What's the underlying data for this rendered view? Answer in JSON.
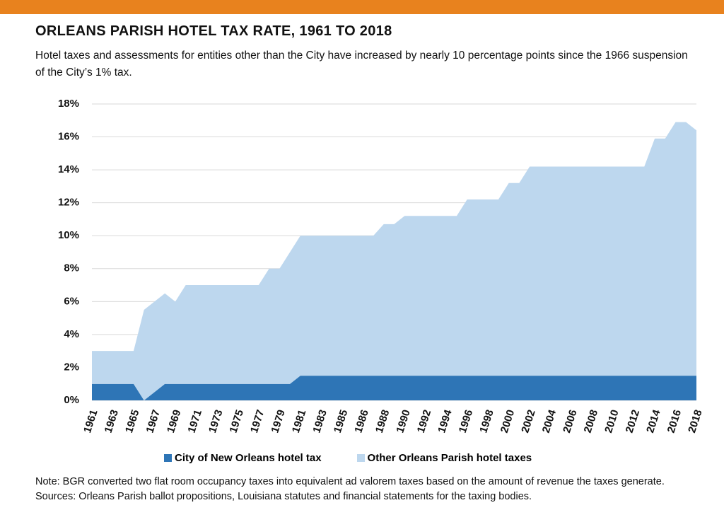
{
  "chart_data": {
    "type": "stacked_area",
    "title": "ORLEANS PARISH HOTEL TAX RATE, 1961 TO 2018",
    "subtitle": "Hotel taxes and assessments for entities other than the City have increased by nearly 10 percentage points since the 1966 suspension of the City’s 1% tax.",
    "categories": [
      "1961",
      null,
      "1963",
      null,
      "1965",
      null,
      "1967",
      null,
      "1969",
      null,
      "1971",
      null,
      "1973",
      null,
      "1975",
      null,
      "1977",
      null,
      "1979",
      null,
      "1981",
      null,
      "1983",
      null,
      "1985",
      null,
      "1986",
      null,
      "1988",
      null,
      "1990",
      null,
      "1992",
      null,
      "1994",
      null,
      "1996",
      null,
      "1998",
      null,
      "2000",
      null,
      "2002",
      null,
      "2004",
      null,
      "2006",
      null,
      "2008",
      null,
      "2010",
      null,
      "2012",
      null,
      "2014",
      null,
      "2016",
      null,
      "2018"
    ],
    "series": [
      {
        "name": "City of New Orleans hotel tax",
        "color": "#2e75b6",
        "values": [
          1,
          1,
          1,
          1,
          1,
          0,
          0.5,
          1,
          1,
          1,
          1,
          1,
          1,
          1,
          1,
          1,
          1,
          1,
          1,
          1,
          1.5,
          1.5,
          1.5,
          1.5,
          1.5,
          1.5,
          1.5,
          1.5,
          1.5,
          1.5,
          1.5,
          1.5,
          1.5,
          1.5,
          1.5,
          1.5,
          1.5,
          1.5,
          1.5,
          1.5,
          1.5,
          1.5,
          1.5,
          1.5,
          1.5,
          1.5,
          1.5,
          1.5,
          1.5,
          1.5,
          1.5,
          1.5,
          1.5,
          1.5,
          1.5,
          1.5,
          1.5,
          1.5,
          1.5
        ]
      },
      {
        "name": "Other Orleans Parish hotel taxes",
        "color": "#bdd7ee",
        "values": [
          2,
          2,
          2,
          2,
          2,
          5.5,
          5.5,
          5.5,
          5,
          6,
          6,
          6,
          6,
          6,
          6,
          6,
          6,
          7,
          7,
          8,
          8.5,
          8.5,
          8.5,
          8.5,
          8.5,
          8.5,
          8.5,
          8.5,
          9.2,
          9.2,
          9.7,
          9.7,
          9.7,
          9.7,
          9.7,
          9.7,
          10.7,
          10.7,
          10.7,
          10.7,
          11.7,
          11.7,
          12.7,
          12.7,
          12.7,
          12.7,
          12.7,
          12.7,
          12.7,
          12.7,
          12.7,
          12.7,
          12.7,
          12.7,
          14.4,
          14.4,
          15.4,
          15.4,
          14.9
        ]
      }
    ],
    "ylim": [
      0,
      18
    ],
    "yticks": [
      {
        "value": 0,
        "label": "0%"
      },
      {
        "value": 2,
        "label": "2%"
      },
      {
        "value": 4,
        "label": "4%"
      },
      {
        "value": 6,
        "label": "6%"
      },
      {
        "value": 8,
        "label": "8%"
      },
      {
        "value": 10,
        "label": "10%"
      },
      {
        "value": 12,
        "label": "12%"
      },
      {
        "value": 14,
        "label": "14%"
      },
      {
        "value": 16,
        "label": "16%"
      },
      {
        "value": 18,
        "label": "18%"
      }
    ],
    "grid": true,
    "notes": [
      "Note: BGR converted two flat room occupancy taxes into equivalent ad valorem taxes based on the amount of revenue the taxes generate.",
      "Sources: Orleans Parish ballot propositions, Louisiana statutes and financial statements for the taxing bodies."
    ]
  }
}
